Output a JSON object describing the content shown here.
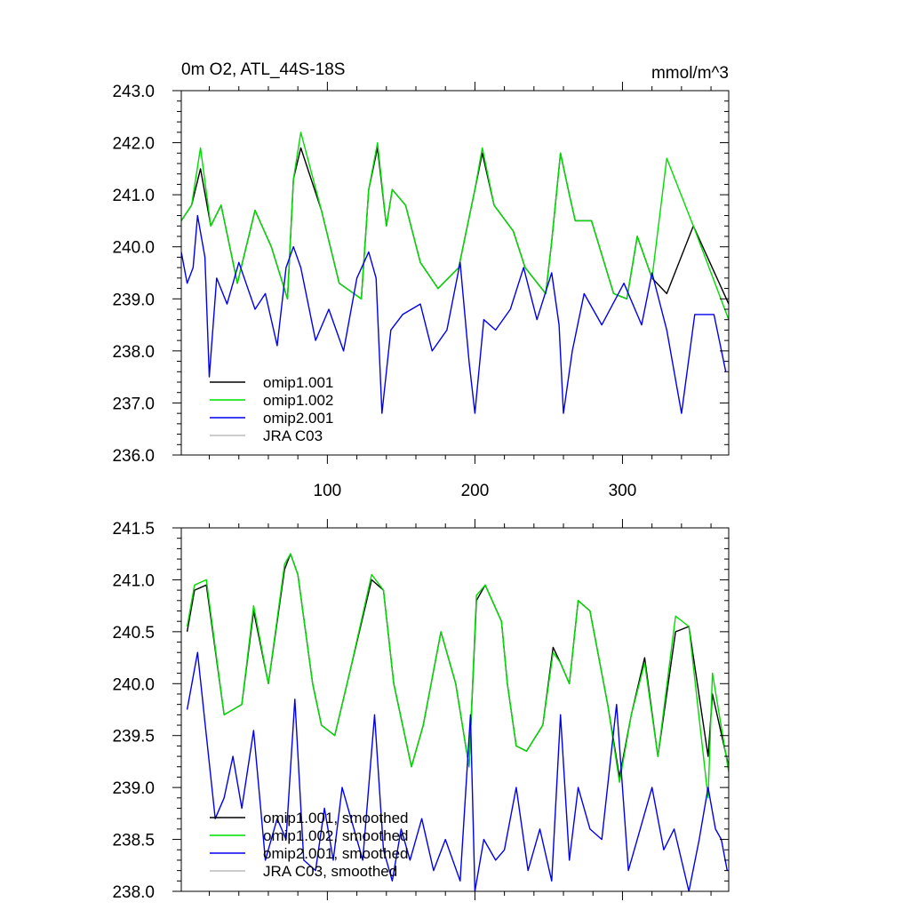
{
  "chart_data": [
    {
      "type": "line",
      "title_left": "0m O2, ATL_44S-18S",
      "title_right": "mmol/m^3",
      "xlim": [
        1,
        372
      ],
      "ylim": [
        236.0,
        243.0
      ],
      "x_ticks": [
        100,
        200,
        300
      ],
      "x_tick_labels": [
        "100",
        "200",
        "300"
      ],
      "y_ticks": [
        236.0,
        237.0,
        238.0,
        239.0,
        240.0,
        241.0,
        242.0,
        243.0
      ],
      "y_tick_labels": [
        "236.0",
        "237.0",
        "238.0",
        "239.0",
        "240.0",
        "241.0",
        "242.0",
        "243.0"
      ],
      "series": [
        {
          "name": "omip1.001",
          "color": "#000000",
          "x": [
            1,
            8,
            14,
            21,
            28,
            39,
            51,
            62,
            73,
            77,
            82,
            96,
            108,
            123,
            128,
            134,
            140,
            144,
            153,
            163,
            175,
            189,
            200,
            205,
            213,
            226,
            234,
            248,
            252,
            258,
            264,
            268,
            279,
            294,
            303,
            310,
            320,
            330,
            348,
            372
          ],
          "values": [
            240.5,
            240.8,
            241.5,
            240.4,
            240.8,
            239.3,
            240.7,
            240.0,
            239.0,
            241.3,
            241.9,
            240.7,
            239.3,
            239.0,
            241.1,
            241.9,
            240.4,
            241.1,
            240.8,
            239.7,
            239.2,
            239.6,
            241.1,
            241.8,
            240.8,
            240.3,
            239.6,
            239.1,
            240.1,
            241.8,
            241.0,
            240.5,
            240.5,
            239.1,
            239.0,
            240.2,
            239.4,
            239.1,
            240.4,
            238.9
          ]
        },
        {
          "name": "omip1.002",
          "color": "#00dd00",
          "x": [
            1,
            8,
            14,
            21,
            28,
            39,
            51,
            62,
            73,
            77,
            82,
            96,
            108,
            123,
            128,
            134,
            140,
            144,
            153,
            163,
            175,
            189,
            200,
            205,
            213,
            226,
            234,
            248,
            252,
            258,
            264,
            268,
            279,
            294,
            303,
            310,
            320,
            330,
            348,
            372
          ],
          "values": [
            240.5,
            240.8,
            241.9,
            240.4,
            240.8,
            239.3,
            240.7,
            240.0,
            239.0,
            241.3,
            242.2,
            240.7,
            239.3,
            239.0,
            241.1,
            242.0,
            240.4,
            241.1,
            240.8,
            239.7,
            239.2,
            239.6,
            241.1,
            241.9,
            240.8,
            240.3,
            239.6,
            239.1,
            240.1,
            241.8,
            241.0,
            240.5,
            240.5,
            239.1,
            239.0,
            240.2,
            239.4,
            241.7,
            240.4,
            238.6
          ]
        },
        {
          "name": "omip2.001",
          "color": "#0000ee",
          "x": [
            1,
            5,
            9,
            12,
            17,
            20,
            25,
            32,
            40,
            51,
            58,
            66,
            72,
            77,
            82,
            92,
            101,
            111,
            120,
            128,
            133,
            137,
            143,
            151,
            163,
            171,
            181,
            190,
            196,
            200,
            206,
            214,
            224,
            233,
            242,
            252,
            257,
            260,
            266,
            274,
            286,
            301,
            313,
            320,
            330,
            340,
            349,
            362,
            370
          ],
          "values": [
            239.9,
            239.3,
            239.6,
            240.6,
            239.8,
            237.5,
            239.4,
            238.9,
            239.7,
            238.8,
            239.1,
            238.1,
            239.6,
            240.0,
            239.6,
            238.2,
            238.8,
            238.0,
            239.4,
            239.9,
            239.4,
            236.8,
            238.4,
            238.7,
            238.9,
            238.0,
            238.4,
            239.7,
            237.8,
            236.8,
            238.6,
            238.4,
            238.8,
            239.6,
            238.6,
            239.5,
            238.5,
            236.8,
            238.0,
            239.1,
            238.5,
            239.3,
            238.5,
            239.5,
            238.4,
            236.8,
            238.7,
            238.7,
            237.6
          ]
        },
        {
          "name": "JRA C03",
          "color": "#bbbbbb",
          "x": [],
          "values": []
        }
      ],
      "legend": [
        "omip1.001",
        "omip1.002",
        "omip2.001",
        "JRA C03"
      ],
      "legend_position": "bottom-left"
    },
    {
      "type": "line",
      "title_left": "",
      "title_right": "",
      "xlim": [
        1,
        372
      ],
      "ylim": [
        238.0,
        241.5
      ],
      "x_ticks": [
        100,
        200,
        300
      ],
      "x_tick_labels": [],
      "y_ticks": [
        238.0,
        238.5,
        239.0,
        239.5,
        240.0,
        240.5,
        241.0,
        241.5
      ],
      "y_tick_labels": [
        "238.0",
        "238.5",
        "239.0",
        "239.5",
        "240.0",
        "240.5",
        "241.0",
        "241.5"
      ],
      "series": [
        {
          "name": "omip1.001, smoothed",
          "color": "#000000",
          "x": [
            5,
            10,
            18,
            30,
            42,
            50,
            60,
            71,
            75,
            80,
            90,
            96,
            105,
            115,
            130,
            138,
            145,
            157,
            165,
            177,
            187,
            196,
            201,
            207,
            218,
            222,
            228,
            235,
            246,
            253,
            258,
            264,
            270,
            278,
            290,
            298,
            306,
            315,
            324,
            336,
            345,
            358,
            361,
            372
          ],
          "values": [
            240.5,
            240.9,
            240.95,
            239.7,
            239.8,
            240.7,
            240.0,
            241.1,
            241.25,
            241.05,
            240.0,
            239.6,
            239.5,
            240.1,
            241.0,
            240.9,
            240.0,
            239.2,
            239.6,
            240.5,
            240.0,
            239.2,
            240.8,
            240.95,
            240.6,
            240.0,
            239.4,
            239.35,
            239.6,
            240.35,
            240.2,
            240.0,
            240.8,
            240.7,
            239.8,
            239.1,
            239.7,
            240.25,
            239.3,
            240.5,
            240.55,
            239.3,
            239.9,
            239.2
          ]
        },
        {
          "name": "omip1.002, smoothed",
          "color": "#00dd00",
          "x": [
            5,
            10,
            18,
            30,
            42,
            50,
            60,
            71,
            75,
            80,
            90,
            96,
            105,
            115,
            130,
            138,
            145,
            157,
            165,
            177,
            187,
            196,
            201,
            207,
            218,
            222,
            228,
            235,
            246,
            253,
            258,
            264,
            270,
            278,
            290,
            298,
            306,
            315,
            324,
            336,
            345,
            358,
            361,
            372
          ],
          "values": [
            240.55,
            240.95,
            241.0,
            239.7,
            239.8,
            240.75,
            240.0,
            241.15,
            241.25,
            241.05,
            240.0,
            239.6,
            239.5,
            240.1,
            241.05,
            240.9,
            240.0,
            239.2,
            239.6,
            240.5,
            240.0,
            239.2,
            240.85,
            240.95,
            240.6,
            240.0,
            239.4,
            239.35,
            239.6,
            240.3,
            240.2,
            240.0,
            240.8,
            240.7,
            239.8,
            239.05,
            239.7,
            240.2,
            239.3,
            240.65,
            240.55,
            238.9,
            240.1,
            239.15
          ]
        },
        {
          "name": "omip2.001, smoothed",
          "color": "#0000ee",
          "x": [
            5,
            12,
            18,
            24,
            30,
            36,
            42,
            50,
            58,
            66,
            72,
            78,
            84,
            92,
            98,
            104,
            110,
            118,
            124,
            132,
            138,
            144,
            150,
            156,
            164,
            172,
            180,
            190,
            197,
            200,
            206,
            214,
            220,
            228,
            236,
            244,
            252,
            258,
            264,
            270,
            278,
            286,
            296,
            304,
            312,
            320,
            328,
            335,
            345,
            352,
            358,
            363,
            367,
            371
          ],
          "values": [
            239.75,
            240.3,
            239.5,
            238.7,
            238.9,
            239.3,
            238.8,
            239.55,
            238.3,
            238.7,
            238.5,
            239.85,
            238.3,
            238.2,
            238.8,
            238.3,
            239.0,
            238.6,
            238.3,
            239.7,
            238.4,
            238.1,
            238.6,
            238.3,
            238.7,
            238.2,
            238.5,
            238.1,
            239.7,
            238.0,
            238.5,
            238.3,
            238.4,
            239.0,
            238.2,
            238.6,
            238.1,
            239.7,
            238.3,
            239.0,
            238.6,
            238.5,
            239.8,
            238.2,
            238.6,
            239.0,
            238.4,
            238.6,
            238.0,
            238.5,
            239.0,
            238.6,
            238.5,
            238.2
          ]
        },
        {
          "name": "JRA C03, smoothed",
          "color": "#bbbbbb",
          "x": [],
          "values": []
        }
      ],
      "legend": [
        "omip1.001, smoothed",
        "omip1.002, smoothed",
        "omip2.001, smoothed",
        "JRA C03, smoothed"
      ],
      "legend_position": "bottom-left"
    }
  ]
}
